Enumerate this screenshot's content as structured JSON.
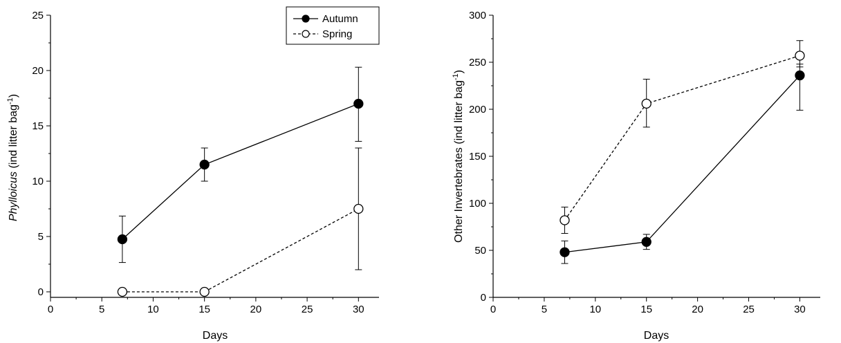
{
  "chart_data": [
    {
      "type": "line",
      "xlabel": "Days",
      "ylabel_italic": "Phylloicus",
      "ylabel_rest": " (ind litter bag",
      "ylabel_sup": "-1",
      "ylabel_close": ")",
      "xlim": [
        0,
        32
      ],
      "ylim": [
        -0.5,
        25
      ],
      "xticks": [
        0,
        5,
        10,
        15,
        20,
        25,
        30
      ],
      "yticks": [
        0,
        5,
        10,
        15,
        20,
        25
      ],
      "legend": {
        "placement": "top-right",
        "entries": [
          "Autumn",
          "Spring"
        ]
      },
      "series": [
        {
          "name": "Autumn",
          "marker": "filled",
          "line": "solid",
          "x": [
            7,
            15,
            30
          ],
          "y": [
            4.75,
            11.5,
            17.0
          ],
          "err_low": [
            2.1,
            1.5,
            3.4
          ],
          "err_high": [
            2.1,
            1.5,
            3.3
          ]
        },
        {
          "name": "Spring",
          "marker": "open",
          "line": "dashed",
          "x": [
            7,
            15,
            30
          ],
          "y": [
            0,
            0,
            7.5
          ],
          "err_low": [
            0,
            0,
            5.5
          ],
          "err_high": [
            0,
            0,
            5.5
          ]
        }
      ]
    },
    {
      "type": "line",
      "xlabel": "Days",
      "ylabel_rest": "Other Invertebrates (ind litter bag",
      "ylabel_sup": "-1",
      "ylabel_close": ")",
      "xlim": [
        0,
        32
      ],
      "ylim": [
        0,
        300
      ],
      "xticks": [
        0,
        5,
        10,
        15,
        20,
        25,
        30
      ],
      "yticks": [
        0,
        50,
        100,
        150,
        200,
        250,
        300
      ],
      "series": [
        {
          "name": "Autumn",
          "marker": "filled",
          "line": "solid",
          "x": [
            7,
            15,
            30
          ],
          "y": [
            48,
            59,
            236
          ],
          "err_low": [
            12,
            8,
            37
          ],
          "err_high": [
            12,
            8,
            12
          ]
        },
        {
          "name": "Spring",
          "marker": "open",
          "line": "dashed",
          "x": [
            7,
            15,
            30
          ],
          "y": [
            82,
            206,
            257
          ],
          "err_low": [
            14,
            25,
            12
          ],
          "err_high": [
            14,
            26,
            16
          ]
        }
      ]
    }
  ]
}
